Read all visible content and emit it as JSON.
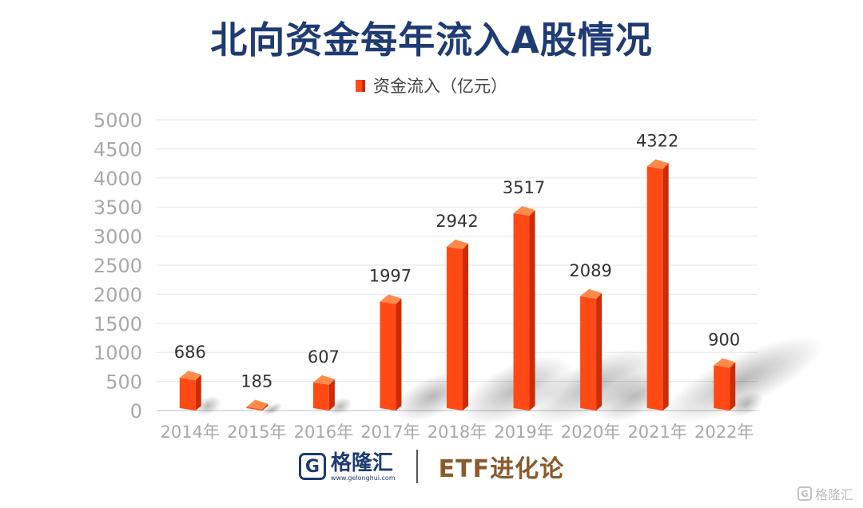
{
  "chart_data": {
    "type": "bar",
    "title": "北向资金每年流入A股情况",
    "legend": "资金流入（亿元）",
    "legend_position": "top-center",
    "categories": [
      "2014年",
      "2015年",
      "2016年",
      "2017年",
      "2018年",
      "2019年",
      "2020年",
      "2021年",
      "2022年"
    ],
    "series": [
      {
        "name": "资金流入（亿元）",
        "values": [
          686,
          185,
          607,
          1997,
          2942,
          3517,
          2089,
          4322,
          900
        ]
      }
    ],
    "yticks": [
      "0",
      "500",
      "1000",
      "1500",
      "2000",
      "2500",
      "3000",
      "3500",
      "4000",
      "4500",
      "5000"
    ],
    "ylim": [
      0,
      5000
    ],
    "grid": true,
    "bar_color": "#ff4a16",
    "bar_side_color": "#cf2a00",
    "bar_top_color": "#ff8a4a"
  },
  "footer": {
    "logo_mark": "G",
    "logo_text": "格隆汇",
    "logo_url": "www.gelonghui.com",
    "partner_text": "ETF进化论"
  },
  "watermark": {
    "mark": "G",
    "text": "格隆汇"
  }
}
